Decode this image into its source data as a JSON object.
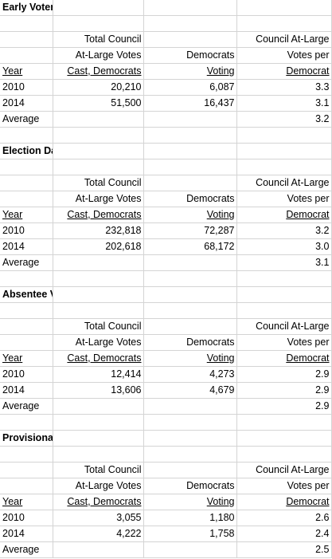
{
  "sections": [
    {
      "title": "Early Voters",
      "header": {
        "col2": [
          "Total Council",
          "At-Large Votes",
          "Cast, Democrats"
        ],
        "col3": [
          "",
          "Democrats",
          "Voting"
        ],
        "col4": [
          "Council At-Large",
          "Votes per",
          "Democrat"
        ],
        "year": "Year"
      },
      "rows": [
        {
          "year": "2010",
          "total": "20,210",
          "dems": "6,087",
          "per": "3.3"
        },
        {
          "year": "2014",
          "total": "51,500",
          "dems": "16,437",
          "per": "3.1"
        }
      ],
      "average_label": "Average",
      "average": "3.2"
    },
    {
      "title": "Election Day Voters",
      "header": {
        "col2": [
          "Total Council",
          "At-Large Votes",
          "Cast, Democrats"
        ],
        "col3": [
          "",
          "Democrats",
          "Voting"
        ],
        "col4": [
          "Council At-Large",
          "Votes per",
          "Democrat"
        ],
        "year": "Year"
      },
      "rows": [
        {
          "year": "2010",
          "total": "232,818",
          "dems": "72,287",
          "per": "3.2"
        },
        {
          "year": "2014",
          "total": "202,618",
          "dems": "68,172",
          "per": "3.0"
        }
      ],
      "average_label": "Average",
      "average": "3.1"
    },
    {
      "title": "Absentee Voters",
      "header": {
        "col2": [
          "Total Council",
          "At-Large Votes",
          "Cast, Democrats"
        ],
        "col3": [
          "",
          "Democrats",
          "Voting"
        ],
        "col4": [
          "Council At-Large",
          "Votes per",
          "Democrat"
        ],
        "year": "Year"
      },
      "rows": [
        {
          "year": "2010",
          "total": "12,414",
          "dems": "4,273",
          "per": "2.9"
        },
        {
          "year": "2014",
          "total": "13,606",
          "dems": "4,679",
          "per": "2.9"
        }
      ],
      "average_label": "Average",
      "average": "2.9"
    },
    {
      "title": "Provisional Voters",
      "header": {
        "col2": [
          "Total Council",
          "At-Large Votes",
          "Cast, Democrats"
        ],
        "col3": [
          "",
          "Democrats",
          "Voting"
        ],
        "col4": [
          "Council At-Large",
          "Votes per",
          "Democrat"
        ],
        "year": "Year"
      },
      "rows": [
        {
          "year": "2010",
          "total": "3,055",
          "dems": "1,180",
          "per": "2.6"
        },
        {
          "year": "2014",
          "total": "4,222",
          "dems": "1,758",
          "per": "2.4"
        }
      ],
      "average_label": "Average",
      "average": "2.5"
    }
  ]
}
